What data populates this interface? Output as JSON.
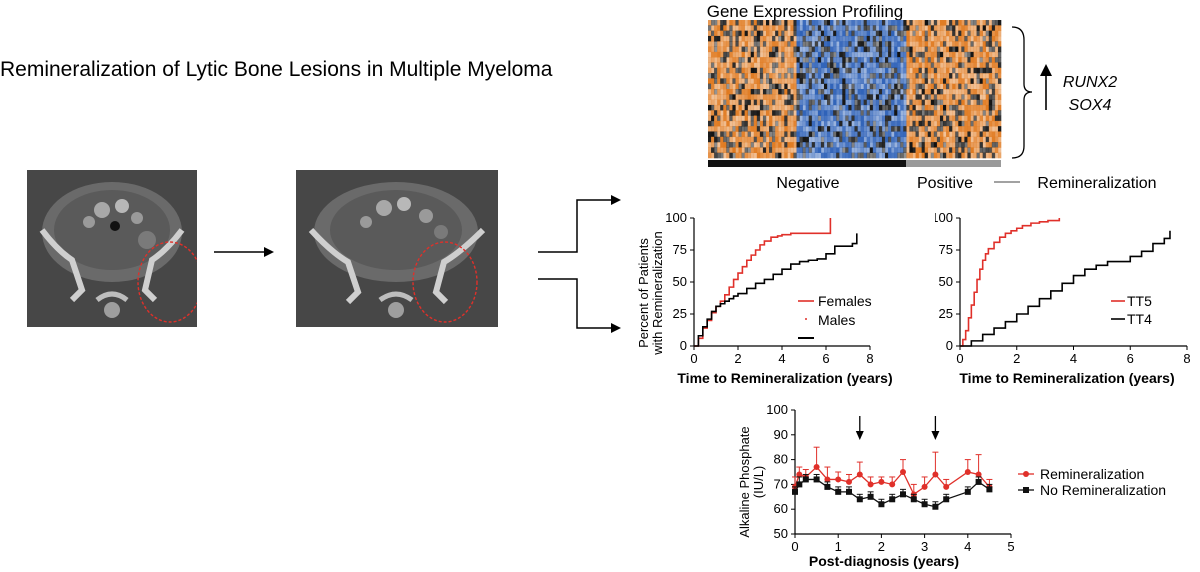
{
  "figure": {
    "title": "Remineralization of Lytic Bone Lesions in Multiple Myeloma"
  },
  "heatmap": {
    "title": "Gene Expression Profiling",
    "group_negative": "Negative",
    "group_positive": "Positive",
    "group_axis_label": "Remineralization",
    "genes": [
      "RUNX2",
      "SOX4"
    ],
    "colors": {
      "low": "#2f62b8",
      "high": "#e07a20",
      "mid": "#111111"
    }
  },
  "ct_images": [
    {
      "name": "ct-before",
      "lesion_marker_color": "#e0302a"
    },
    {
      "name": "ct-after",
      "lesion_marker_color": "#e0302a"
    }
  ],
  "chart_data": [
    {
      "type": "line",
      "chart": "km-sex",
      "xlabel": "Time to Remineralization (years)",
      "ylabel": "Percent of Patients with Remineralization",
      "xlim": [
        0,
        8
      ],
      "ylim": [
        0,
        100
      ],
      "xticks": [
        "0",
        "2",
        "4",
        "6",
        "8"
      ],
      "yticks": [
        "0",
        "25",
        "50",
        "75",
        "100"
      ],
      "legend_position": "inside-right",
      "series": [
        {
          "name": "Females",
          "color": "#e0302a",
          "x": [
            0,
            0.2,
            0.4,
            0.6,
            0.8,
            1.0,
            1.2,
            1.4,
            1.6,
            1.8,
            2.0,
            2.2,
            2.4,
            2.6,
            2.8,
            3.0,
            3.2,
            3.5,
            3.8,
            4.0,
            4.4,
            4.8,
            5.2,
            5.6,
            6.0,
            6.2
          ],
          "y": [
            0,
            6,
            14,
            20,
            26,
            31,
            35,
            40,
            46,
            52,
            57,
            62,
            67,
            71,
            75,
            79,
            82,
            85,
            86,
            87,
            88,
            88,
            88,
            88,
            88,
            100
          ]
        },
        {
          "name": "Males",
          "color": "#000000",
          "x": [
            0,
            0.2,
            0.4,
            0.6,
            0.8,
            1.0,
            1.2,
            1.4,
            1.6,
            1.8,
            2.0,
            2.4,
            2.8,
            3.2,
            3.6,
            4.0,
            4.4,
            4.8,
            5.2,
            5.6,
            6.0,
            6.4,
            6.8,
            7.2,
            7.4
          ],
          "y": [
            0,
            8,
            15,
            21,
            27,
            31,
            33,
            35,
            37,
            39,
            41,
            45,
            49,
            52,
            56,
            60,
            64,
            66,
            67,
            68,
            72,
            78,
            78,
            80,
            88
          ]
        }
      ]
    },
    {
      "type": "line",
      "chart": "km-trial",
      "xlabel": "Time to Remineralization (years)",
      "ylabel": "",
      "xlim": [
        0,
        8
      ],
      "ylim": [
        0,
        100
      ],
      "xticks": [
        "0",
        "2",
        "4",
        "6",
        "8"
      ],
      "yticks": [
        "0",
        "25",
        "50",
        "75",
        "100"
      ],
      "legend_position": "inside-right",
      "series": [
        {
          "name": "TT5",
          "color": "#e0302a",
          "x": [
            0,
            0.1,
            0.2,
            0.3,
            0.4,
            0.5,
            0.6,
            0.7,
            0.8,
            0.9,
            1.0,
            1.2,
            1.4,
            1.6,
            1.8,
            2.0,
            2.2,
            2.5,
            2.8,
            3.1,
            3.5
          ],
          "y": [
            0,
            5,
            12,
            22,
            32,
            42,
            52,
            60,
            67,
            72,
            76,
            81,
            85,
            88,
            90,
            92,
            94,
            96,
            97,
            98,
            100
          ]
        },
        {
          "name": "TT4",
          "color": "#000000",
          "x": [
            0,
            0.4,
            0.8,
            1.2,
            1.6,
            2.0,
            2.4,
            2.8,
            3.2,
            3.6,
            4.0,
            4.4,
            4.8,
            5.2,
            5.6,
            6.0,
            6.4,
            6.8,
            7.2,
            7.4
          ],
          "y": [
            0,
            4,
            9,
            14,
            19,
            25,
            31,
            37,
            43,
            49,
            55,
            60,
            63,
            66,
            66,
            70,
            74,
            80,
            84,
            90
          ]
        }
      ]
    },
    {
      "type": "line",
      "chart": "alkaline-phosphate",
      "xlabel": "Post-diagnosis (years)",
      "ylabel": "Alkaline Phosphate (IU/L)",
      "xlim": [
        0,
        5
      ],
      "ylim": [
        50,
        100
      ],
      "xticks": [
        "0",
        "1",
        "2",
        "3",
        "4",
        "5"
      ],
      "yticks": [
        "50",
        "60",
        "70",
        "80",
        "90",
        "100"
      ],
      "arrows_at_x": [
        1.5,
        3.25
      ],
      "legend_position": "right",
      "series": [
        {
          "name": "Remineralization",
          "color": "#e0302a",
          "marker": "circle",
          "x": [
            0,
            0.1,
            0.25,
            0.5,
            0.75,
            1.0,
            1.25,
            1.5,
            1.75,
            2.0,
            2.25,
            2.5,
            2.75,
            3.0,
            3.25,
            3.5,
            4.0,
            4.25,
            4.5
          ],
          "y": [
            69,
            74,
            73,
            77,
            72,
            72,
            71,
            74,
            70,
            71,
            70,
            75,
            66,
            69,
            74,
            69,
            75,
            74,
            69
          ],
          "err": [
            4,
            3,
            3,
            8,
            5,
            3,
            3,
            5,
            3,
            2,
            3,
            5,
            4,
            4,
            9,
            3,
            5,
            8,
            3
          ]
        },
        {
          "name": "No Remineralization",
          "color": "#111111",
          "marker": "square",
          "x": [
            0,
            0.1,
            0.25,
            0.5,
            0.75,
            1.0,
            1.25,
            1.5,
            1.75,
            2.0,
            2.25,
            2.5,
            2.75,
            3.0,
            3.25,
            3.5,
            4.0,
            4.25,
            4.5
          ],
          "y": [
            67,
            70,
            72,
            72,
            69,
            67,
            67,
            64,
            65,
            62,
            64,
            66,
            64,
            62,
            61,
            64,
            67,
            71,
            68
          ],
          "err": [
            2,
            3,
            2,
            2,
            2,
            2,
            2,
            2,
            2,
            2,
            2,
            2,
            2,
            2,
            2,
            2,
            2,
            2,
            2
          ]
        }
      ]
    }
  ]
}
